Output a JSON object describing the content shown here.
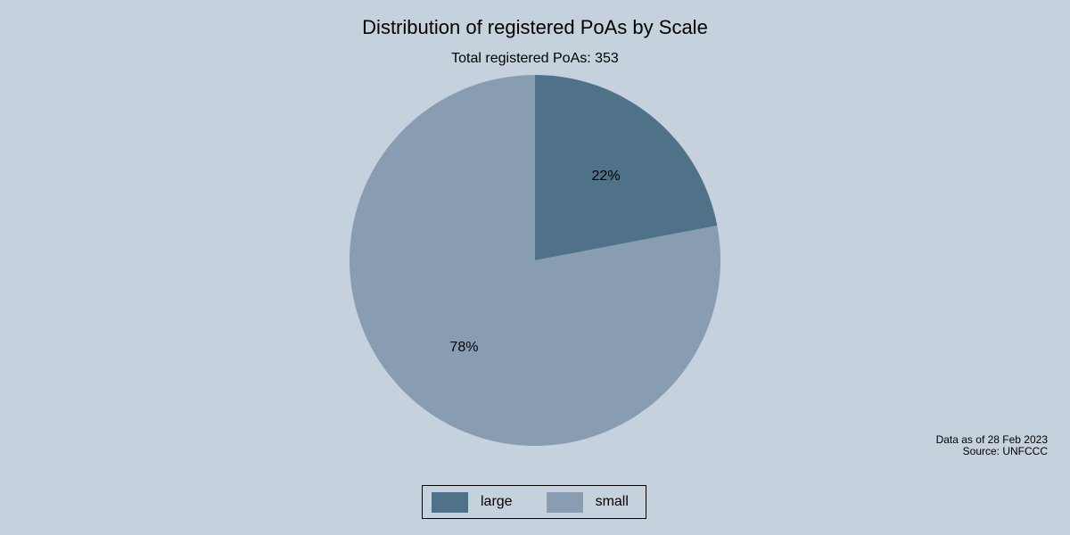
{
  "chart_data": {
    "type": "pie",
    "title": "Distribution of registered PoAs by Scale",
    "subtitle": "Total registered PoAs: 353",
    "slices": [
      {
        "name": "large",
        "value": 22,
        "label": "22%",
        "color": "#4f7289"
      },
      {
        "name": "small",
        "value": 78,
        "label": "78%",
        "color": "#889db1"
      }
    ],
    "start_angle": "12 o'clock",
    "direction": "clockwise",
    "legend_position": "bottom",
    "notes": [
      "Data as of 28 Feb 2023",
      "Source: UNFCCC"
    ]
  },
  "background": "#c5d1dd"
}
